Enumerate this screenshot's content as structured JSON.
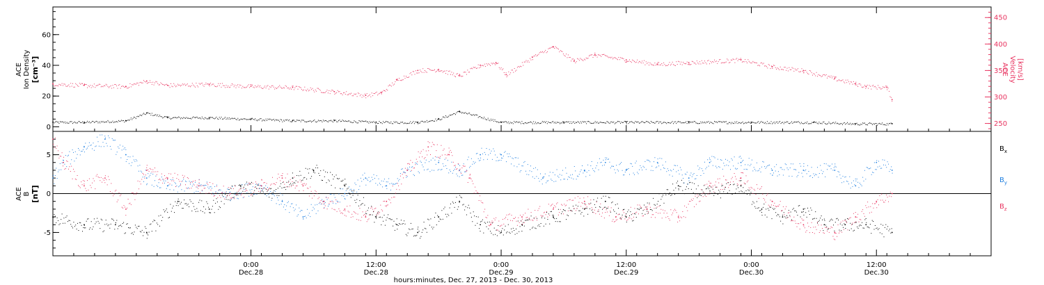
{
  "figure": {
    "xaxis_title": "hours:minutes, Dec. 27, 2013 - Dec. 30, 2013",
    "x_ticks": [
      {
        "time": "2013-12-28T00:00",
        "hhmm": "0:00",
        "date": "Dec.28"
      },
      {
        "time": "2013-12-28T12:00",
        "hhmm": "12:00",
        "date": "Dec.28"
      },
      {
        "time": "2013-12-29T00:00",
        "hhmm": "0:00",
        "date": "Dec.29"
      },
      {
        "time": "2013-12-29T12:00",
        "hhmm": "12:00",
        "date": "Dec.29"
      },
      {
        "time": "2013-12-30T00:00",
        "hhmm": "0:00",
        "date": "Dec.30"
      },
      {
        "time": "2013-12-30T12:00",
        "hhmm": "12:00",
        "date": "Dec.30"
      }
    ],
    "xlim": [
      "2013-12-27T05:00",
      "2013-12-30T23:00"
    ]
  },
  "colors": {
    "black": "#000000",
    "blue": "#1f7fe0",
    "red": "#e8335f"
  },
  "chart_data": [
    {
      "type": "scatter",
      "panel": "top",
      "ylabel_left": [
        "ACE",
        "Ion Density",
        "[cm⁻³]"
      ],
      "ylabel_right": [
        "ACE",
        "Velocity",
        "[km/s]"
      ],
      "ylim_left": [
        -3,
        78
      ],
      "ylim_right": [
        235,
        470
      ],
      "yticks_left": [
        0,
        20,
        40,
        60
      ],
      "yticks_right": [
        250,
        300,
        350,
        400,
        450
      ],
      "series": [
        {
          "color": "black",
          "axis": "left",
          "x": [
            "2013-12-27T05:00",
            "2013-12-27T08:00",
            "2013-12-27T12:00",
            "2013-12-27T14:00",
            "2013-12-27T16:00",
            "2013-12-27T20:00",
            "2013-12-28T00:00",
            "2013-12-28T04:00",
            "2013-12-28T08:00",
            "2013-12-28T12:00",
            "2013-12-28T16:00",
            "2013-12-28T18:00",
            "2013-12-28T20:00",
            "2013-12-29T00:00",
            "2013-12-29T06:00",
            "2013-12-29T12:00",
            "2013-12-29T18:00",
            "2013-12-30T00:00",
            "2013-12-30T06:00",
            "2013-12-30T10:00",
            "2013-12-30T13:30"
          ],
          "y": [
            3,
            3,
            4,
            9,
            6,
            6,
            5,
            4,
            4,
            3,
            3,
            5,
            10,
            3,
            3,
            3,
            3,
            3,
            3,
            2,
            2
          ]
        },
        {
          "color": "red",
          "axis": "right",
          "x": [
            "2013-12-27T05:00",
            "2013-12-27T08:00",
            "2013-12-27T12:00",
            "2013-12-27T14:00",
            "2013-12-27T16:00",
            "2013-12-27T20:00",
            "2013-12-28T00:00",
            "2013-12-28T04:00",
            "2013-12-28T08:00",
            "2013-12-28T11:00",
            "2013-12-28T12:30",
            "2013-12-28T14:00",
            "2013-12-28T16:00",
            "2013-12-28T18:00",
            "2013-12-28T20:00",
            "2013-12-28T22:00",
            "2013-12-28T23:30",
            "2013-12-29T00:30",
            "2013-12-29T03:00",
            "2013-12-29T05:00",
            "2013-12-29T07:00",
            "2013-12-29T09:00",
            "2013-12-29T12:00",
            "2013-12-29T15:00",
            "2013-12-29T18:00",
            "2013-12-29T23:00",
            "2013-12-30T02:00",
            "2013-12-30T05:00",
            "2013-12-30T08:00",
            "2013-12-30T10:00",
            "2013-12-30T11:00",
            "2013-12-30T13:00",
            "2013-12-30T13:30"
          ],
          "y": [
            325,
            322,
            320,
            330,
            322,
            324,
            320,
            318,
            310,
            303,
            308,
            332,
            350,
            352,
            340,
            360,
            365,
            342,
            375,
            395,
            368,
            380,
            370,
            362,
            365,
            370,
            357,
            350,
            335,
            325,
            320,
            318,
            295
          ]
        }
      ]
    },
    {
      "type": "scatter",
      "panel": "bottom",
      "ylabel_left": [
        "ACE",
        "B",
        "[nT]"
      ],
      "ylim": [
        -8,
        8
      ],
      "yticks": [
        -5,
        0,
        5
      ],
      "zero_line": true,
      "legend": {
        "placement": "right",
        "entries": [
          {
            "label": "B",
            "sub": "x",
            "color": "black"
          },
          {
            "label": "B",
            "sub": "y",
            "color": "blue"
          },
          {
            "label": "B",
            "sub": "z",
            "color": "red"
          }
        ]
      },
      "series": [
        {
          "color": "black",
          "x": [
            "2013-12-27T05:00",
            "2013-12-27T08:00",
            "2013-12-27T11:00",
            "2013-12-27T14:00",
            "2013-12-27T17:00",
            "2013-12-27T20:00",
            "2013-12-27T23:00",
            "2013-12-28T02:00",
            "2013-12-28T04:00",
            "2013-12-28T06:00",
            "2013-12-28T09:00",
            "2013-12-28T12:00",
            "2013-12-28T14:00",
            "2013-12-28T16:00",
            "2013-12-28T18:00",
            "2013-12-28T20:00",
            "2013-12-28T22:00",
            "2013-12-29T00:00",
            "2013-12-29T02:00",
            "2013-12-29T05:00",
            "2013-12-29T08:00",
            "2013-12-29T10:00",
            "2013-12-29T12:00",
            "2013-12-29T14:00",
            "2013-12-29T17:00",
            "2013-12-29T20:00",
            "2013-12-29T23:00",
            "2013-12-30T01:00",
            "2013-12-30T03:00",
            "2013-12-30T05:00",
            "2013-12-30T07:00",
            "2013-12-30T09:00",
            "2013-12-30T11:00",
            "2013-12-30T13:30"
          ],
          "y": [
            -3,
            -4,
            -4,
            -5,
            -1,
            -2,
            1,
            0,
            2,
            3,
            1,
            -3,
            -4,
            -5,
            -3,
            -1,
            -4,
            -5,
            -4,
            -3,
            -2,
            -1,
            -3,
            -2,
            1,
            0,
            1,
            -2,
            -3,
            -2,
            -4,
            -4,
            -4,
            -5
          ]
        },
        {
          "color": "blue",
          "x": [
            "2013-12-27T05:00",
            "2013-12-27T06:00",
            "2013-12-27T08:00",
            "2013-12-27T10:00",
            "2013-12-27T12:00",
            "2013-12-27T14:00",
            "2013-12-27T16:00",
            "2013-12-27T19:00",
            "2013-12-27T22:00",
            "2013-12-28T01:00",
            "2013-12-28T03:00",
            "2013-12-28T05:00",
            "2013-12-28T07:00",
            "2013-12-28T09:00",
            "2013-12-28T11:00",
            "2013-12-28T13:00",
            "2013-12-28T15:00",
            "2013-12-28T18:00",
            "2013-12-28T20:00",
            "2013-12-28T22:00",
            "2013-12-29T00:00",
            "2013-12-29T04:00",
            "2013-12-29T08:00",
            "2013-12-29T10:00",
            "2013-12-29T12:00",
            "2013-12-29T15:00",
            "2013-12-29T18:00",
            "2013-12-29T20:00",
            "2013-12-29T23:00",
            "2013-12-30T02:00",
            "2013-12-30T05:00",
            "2013-12-30T08:00",
            "2013-12-30T10:00",
            "2013-12-30T12:00",
            "2013-12-30T13:30"
          ],
          "y": [
            2,
            4,
            6,
            7,
            5,
            2,
            1,
            1,
            0,
            1,
            -1,
            -3,
            -1,
            0,
            2,
            1,
            3,
            4,
            3,
            5,
            5,
            2,
            3,
            4,
            3,
            4,
            2,
            4,
            4,
            3,
            3,
            3,
            1,
            4,
            3
          ]
        },
        {
          "color": "red",
          "x": [
            "2013-12-27T05:00",
            "2013-12-27T06:00",
            "2013-12-27T08:00",
            "2013-12-27T10:00",
            "2013-12-27T12:00",
            "2013-12-27T14:00",
            "2013-12-27T16:00",
            "2013-12-27T19:00",
            "2013-12-27T22:00",
            "2013-12-28T01:00",
            "2013-12-28T03:00",
            "2013-12-28T05:00",
            "2013-12-28T07:00",
            "2013-12-28T09:00",
            "2013-12-28T11:00",
            "2013-12-28T13:00",
            "2013-12-28T15:00",
            "2013-12-28T17:00",
            "2013-12-28T19:00",
            "2013-12-28T21:00",
            "2013-12-28T23:00",
            "2013-12-29T02:00",
            "2013-12-29T05:00",
            "2013-12-29T08:00",
            "2013-12-29T11:00",
            "2013-12-29T14:00",
            "2013-12-29T17:00",
            "2013-12-29T20:00",
            "2013-12-29T23:00",
            "2013-12-30T02:00",
            "2013-12-30T05:00",
            "2013-12-30T08:00",
            "2013-12-30T10:00",
            "2013-12-30T12:00",
            "2013-12-30T13:30"
          ],
          "y": [
            7,
            4,
            1,
            2,
            -2,
            3,
            2,
            1,
            0,
            1,
            2,
            1,
            -1,
            -2,
            -3,
            -1,
            3,
            6,
            5,
            2,
            -4,
            -3,
            -2,
            -1,
            -3,
            -2,
            -3,
            1,
            2,
            -1,
            -4,
            -5,
            -3,
            -1,
            0
          ]
        }
      ]
    }
  ]
}
